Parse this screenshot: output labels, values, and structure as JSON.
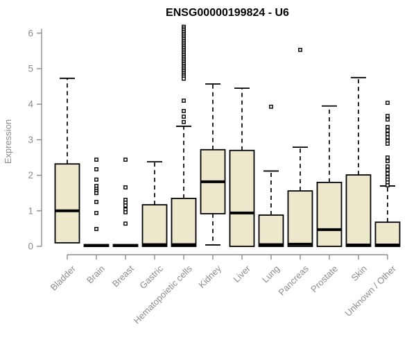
{
  "colors": {
    "box_fill": "#EDE7CC",
    "box_stroke": "#000000",
    "median_color": "#000000",
    "axis_color": "#8c8c8c",
    "tick_label_color": "#8c8c8c",
    "title_color": "#000000",
    "background": "#ffffff"
  },
  "chart_data": {
    "type": "boxplot",
    "title": "ENSG00000199824 - U6",
    "xlabel": "",
    "ylabel": "Expression",
    "ylim": [
      0,
      6.2
    ],
    "yticks": [
      0,
      1,
      2,
      3,
      4,
      5,
      6
    ],
    "grid": false,
    "legend": "none",
    "categories": [
      "Bladder",
      "Brain",
      "Breast",
      "Gastric",
      "Hematopoietic cells",
      "Kidney",
      "Liver",
      "Lung",
      "Pancreas",
      "Prostate",
      "Skin",
      "Unknown / Other"
    ],
    "series": [
      {
        "category": "Bladder",
        "whisker_low": 0.1,
        "q1": 0.1,
        "median": 1.0,
        "q3": 2.32,
        "whisker_high": 4.73,
        "outliers": []
      },
      {
        "category": "Brain",
        "whisker_low": 0,
        "q1": 0,
        "median": 0.02,
        "q3": 0.05,
        "whisker_high": 0.05,
        "outliers": [
          2.44,
          2.17,
          1.88,
          1.7,
          1.62,
          1.56,
          1.5,
          1.25,
          0.94,
          0.49
        ]
      },
      {
        "category": "Breast",
        "whisker_low": 0,
        "q1": 0,
        "median": 0.02,
        "q3": 0.05,
        "whisker_high": 0.05,
        "outliers": [
          2.44,
          1.66,
          1.31,
          1.23,
          1.15,
          1.04,
          0.96,
          0.64
        ]
      },
      {
        "category": "Gastric",
        "whisker_low": 0,
        "q1": 0,
        "median": 0.05,
        "q3": 1.17,
        "whisker_high": 2.38,
        "outliers": []
      },
      {
        "category": "Hematopoietic cells",
        "whisker_low": 0,
        "q1": 0,
        "median": 0.05,
        "q3": 1.35,
        "whisker_high": 3.38,
        "outliers": [
          6.18,
          6.13,
          6.08,
          6.03,
          5.98,
          5.93,
          5.88,
          5.83,
          5.78,
          5.73,
          5.68,
          5.63,
          5.58,
          5.53,
          5.48,
          5.43,
          5.38,
          5.33,
          5.28,
          5.23,
          5.18,
          5.13,
          5.08,
          5.03,
          4.98,
          4.93,
          4.88,
          4.83,
          4.78,
          4.72,
          4.1,
          3.81,
          3.65,
          3.5
        ]
      },
      {
        "category": "Kidney",
        "whisker_low": 0.04,
        "q1": 0.92,
        "median": 1.82,
        "q3": 2.72,
        "whisker_high": 4.57,
        "outliers": []
      },
      {
        "category": "Liver",
        "whisker_low": 0,
        "q1": 0,
        "median": 0.94,
        "q3": 2.7,
        "whisker_high": 4.45,
        "outliers": []
      },
      {
        "category": "Lung",
        "whisker_low": 0,
        "q1": 0,
        "median": 0.05,
        "q3": 0.88,
        "whisker_high": 2.12,
        "outliers": [
          3.93
        ]
      },
      {
        "category": "Pancreas",
        "whisker_low": 0,
        "q1": 0,
        "median": 0.06,
        "q3": 1.56,
        "whisker_high": 2.79,
        "outliers": [
          5.53
        ]
      },
      {
        "category": "Prostate",
        "whisker_low": 0,
        "q1": 0,
        "median": 0.47,
        "q3": 1.8,
        "whisker_high": 3.95,
        "outliers": []
      },
      {
        "category": "Skin",
        "whisker_low": 0,
        "q1": 0,
        "median": 0.04,
        "q3": 2.01,
        "whisker_high": 4.75,
        "outliers": []
      },
      {
        "category": "Unknown / Other",
        "whisker_low": 0,
        "q1": 0,
        "median": 0.04,
        "q3": 0.68,
        "whisker_high": 1.7,
        "outliers": [
          4.04,
          3.67,
          3.57,
          3.36,
          3.26,
          3.16,
          3.07,
          2.97,
          2.89,
          2.5,
          2.4,
          2.25,
          2.15,
          2.05,
          1.95,
          1.88,
          1.8,
          1.72
        ]
      }
    ]
  }
}
